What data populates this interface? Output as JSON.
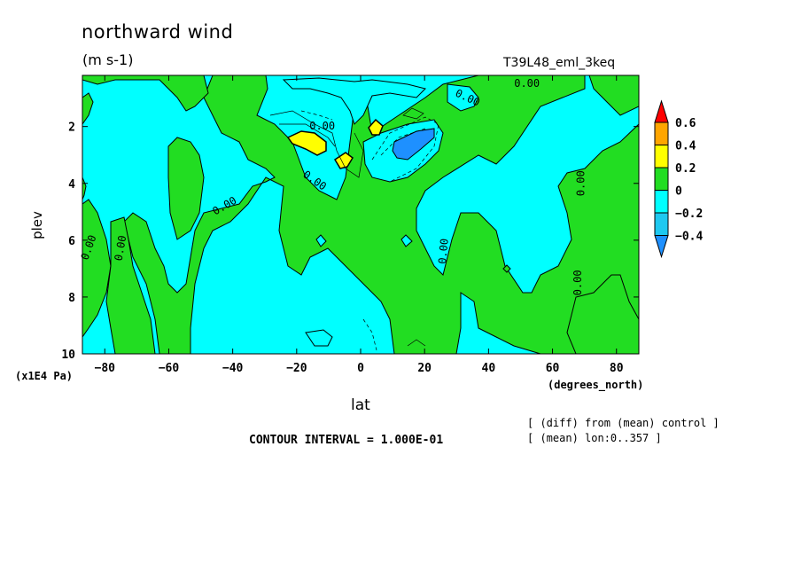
{
  "chart_data": {
    "type": "heatmap",
    "title": "northward wind",
    "units": "(m s-1)",
    "run_label": "T39L48_eml_3keq",
    "xlabel": "lat",
    "xunits": "(degrees_north)",
    "ylabel": "plev",
    "yunits": "(x1E4 Pa)",
    "xlim": [
      -87,
      87
    ],
    "ylim": [
      10,
      0.2
    ],
    "x_ticks": [
      -80,
      -60,
      -40,
      -20,
      0,
      20,
      40,
      60,
      80
    ],
    "x_tick_labels": [
      "−80",
      "−60",
      "−40",
      "−20",
      "0",
      "20",
      "40",
      "60",
      "80"
    ],
    "y_ticks": [
      2,
      4,
      6,
      8,
      10
    ],
    "y_tick_labels": [
      "2",
      "4",
      "6",
      "8",
      "10"
    ],
    "colorbar": {
      "levels": [
        -0.4,
        -0.2,
        0,
        0.2,
        0.4,
        0.6
      ],
      "labels": [
        "−0.4",
        "−0.2",
        "0",
        "0.2",
        "0.4",
        "0.6"
      ],
      "colors": [
        "#1e90ff",
        "#1ec8f0",
        "#00ffff",
        "#22dd22",
        "#ffff00",
        "#ffa500",
        "#ff0000"
      ]
    },
    "contour_labels": [
      "0.00",
      "0.00",
      "0.00",
      "0.00",
      "0.00",
      "0.00",
      "0.00",
      "0.00",
      "0.00",
      "0.00",
      "0.00",
      "0.00"
    ],
    "contour_interval_text": "CONTOUR INTERVAL = 1.000E-01",
    "footnotes": [
      "[ (diff) from (mean) control ]",
      "[ (mean) lon:0..357 ]"
    ],
    "regions": [
      {
        "sign": "positive",
        "level": 0,
        "description_x": [
          -87,
          -65
        ],
        "pressure": [
          6,
          10
        ]
      },
      {
        "sign": "positive",
        "level": 0,
        "x": [
          -48,
          -30
        ],
        "y": [
          4.5,
          10
        ]
      },
      {
        "sign": "positive",
        "level": 0,
        "x": [
          -30,
          10
        ],
        "y": [
          0.3,
          10
        ]
      },
      {
        "sign": "positive",
        "level": 0.2,
        "x": [
          -18,
          -11
        ],
        "y": [
          2.2,
          2.9
        ]
      },
      {
        "sign": "positive",
        "level": 0.2,
        "x": [
          -8,
          -3
        ],
        "y": [
          2.8,
          3.2
        ]
      },
      {
        "sign": "positive",
        "level": 0.2,
        "x": [
          3,
          8
        ],
        "y": [
          1.9,
          2.4
        ]
      },
      {
        "sign": "negative",
        "level": -0.2,
        "x": [
          10,
          25
        ],
        "y": [
          2.0,
          3.2
        ]
      },
      {
        "sign": "positive",
        "level": 0,
        "x": [
          10,
          87
        ],
        "y": [
          2.5,
          10
        ]
      }
    ]
  }
}
